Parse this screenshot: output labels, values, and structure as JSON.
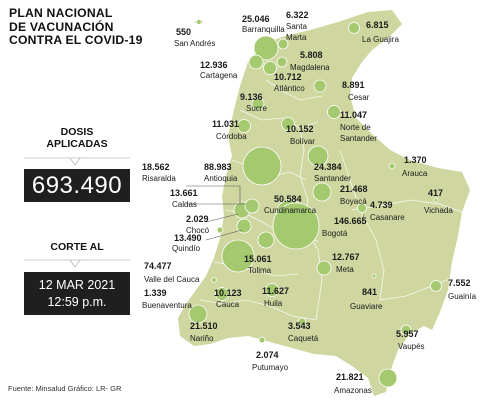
{
  "title_lines": [
    "PLAN NACIONAL",
    "DE VACUNACIÓN",
    "CONTRA EL COVID-19"
  ],
  "doses_label_lines": [
    "DOSIS",
    "APLICADAS"
  ],
  "doses_value": "693.490",
  "cutoff_label": "CORTE AL",
  "cutoff_date": "12 MAR 2021",
  "cutoff_time": "12:59 p.m.",
  "source": "Fuente: Minsalud   Gráfico: LR- GR",
  "colors": {
    "land": "#cfd6a0",
    "bubble": "#a4c96e",
    "bubble_stroke": "#ffffff",
    "panel": "#1f1f1f"
  },
  "regions": [
    {
      "name": "San Andrés",
      "value": "550"
    },
    {
      "name": "Barranquilla",
      "value": "25.046"
    },
    {
      "name": "Santa Marta",
      "value": "6.322"
    },
    {
      "name": "La Guajira",
      "value": "6.815"
    },
    {
      "name": "Cartagena",
      "value": "12.936"
    },
    {
      "name": "Magdalena",
      "value": "5.808"
    },
    {
      "name": "Atlántico",
      "value": "10.712"
    },
    {
      "name": "Cesar",
      "value": "8.891"
    },
    {
      "name": "Sucre",
      "value": "9.136"
    },
    {
      "name": "Córdoba",
      "value": "11.031"
    },
    {
      "name": "Bolívar",
      "value": "10.152"
    },
    {
      "name": "Norte de Santander",
      "value": "11.047"
    },
    {
      "name": "Santander",
      "value": "24.384"
    },
    {
      "name": "Arauca",
      "value": "1.370"
    },
    {
      "name": "Risaralda",
      "value": "18.562"
    },
    {
      "name": "Antioquia",
      "value": "88.983"
    },
    {
      "name": "Caldas",
      "value": "13.661"
    },
    {
      "name": "Cundinamarca",
      "value": "50.584"
    },
    {
      "name": "Boyacá",
      "value": "21.468"
    },
    {
      "name": "Bogotá",
      "value": "146.665"
    },
    {
      "name": "Casanare",
      "value": "4.739"
    },
    {
      "name": "Vichada",
      "value": "417"
    },
    {
      "name": "Chocó",
      "value": "2.029"
    },
    {
      "name": "Quindío",
      "value": "13.490"
    },
    {
      "name": "Tolima",
      "value": "15.061"
    },
    {
      "name": "Valle del Cauca",
      "value": "74.477"
    },
    {
      "name": "Meta",
      "value": "12.767"
    },
    {
      "name": "Buenaventura",
      "value": "1.339"
    },
    {
      "name": "Cauca",
      "value": "10.123"
    },
    {
      "name": "Huila",
      "value": "11.627"
    },
    {
      "name": "Guaviare",
      "value": "841"
    },
    {
      "name": "Guainía",
      "value": "7.552"
    },
    {
      "name": "Nariño",
      "value": "21.510"
    },
    {
      "name": "Caquetá",
      "value": "3.543"
    },
    {
      "name": "Vaupés",
      "value": "5.957"
    },
    {
      "name": "Putumayo",
      "value": "2.074"
    },
    {
      "name": "Amazonas",
      "value": "21.821"
    }
  ]
}
